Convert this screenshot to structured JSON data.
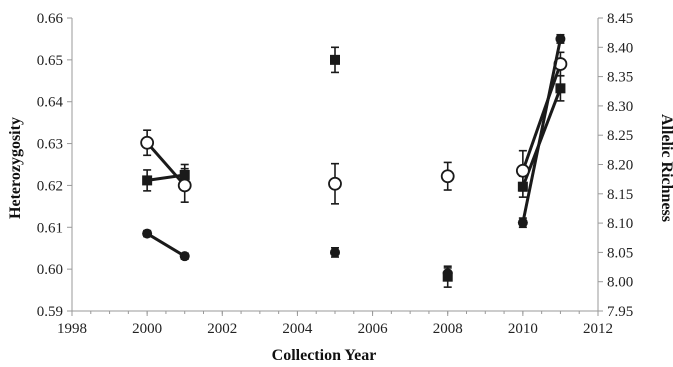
{
  "chart_data": {
    "type": "scatter",
    "xlabel": "Collection Year",
    "ylabel_left": "Heterozygosity",
    "ylabel_right": "Allelic Richness",
    "xlim": [
      1998,
      2012
    ],
    "x_ticks": [
      "1998",
      "2000",
      "2002",
      "2004",
      "2006",
      "2008",
      "2010",
      "2012"
    ],
    "ylim_left": [
      0.59,
      0.66
    ],
    "y_ticks_left": [
      "0.59",
      "0.60",
      "0.61",
      "0.62",
      "0.63",
      "0.64",
      "0.65",
      "0.66"
    ],
    "ylim_right": [
      7.95,
      8.45
    ],
    "y_ticks_right": [
      "7.95",
      "8.00",
      "8.05",
      "8.10",
      "8.15",
      "8.20",
      "8.25",
      "8.30",
      "8.35",
      "8.40",
      "8.45"
    ],
    "grid": false,
    "legend": "none",
    "series": [
      {
        "marker": "square-filled",
        "axis": "left",
        "color": "#1a1a1a",
        "points": [
          {
            "x": 2000,
            "y": 0.6212,
            "err": 0.0025
          },
          {
            "x": 2001,
            "y": 0.6225,
            "err": 0.0025
          },
          {
            "x": 2005,
            "y": 0.65,
            "err": 0.003
          },
          {
            "x": 2008,
            "y": 0.5982,
            "err": 0.0025
          },
          {
            "x": 2010,
            "y": 0.6197,
            "err": 0.0025
          },
          {
            "x": 2011,
            "y": 0.6432,
            "err": 0.003
          }
        ],
        "line_segments": [
          [
            0,
            1
          ],
          [
            4,
            5
          ]
        ]
      },
      {
        "marker": "circle-open",
        "axis": "left",
        "color": "#1a1a1a",
        "points": [
          {
            "x": 2000,
            "y": 0.6302,
            "err": 0.003
          },
          {
            "x": 2001,
            "y": 0.62,
            "err": 0.004
          },
          {
            "x": 2005,
            "y": 0.6204,
            "err": 0.0048
          },
          {
            "x": 2008,
            "y": 0.6222,
            "err": 0.0033
          },
          {
            "x": 2010,
            "y": 0.6235,
            "err": 0.0048
          },
          {
            "x": 2011,
            "y": 0.649,
            "err": 0.0028
          }
        ],
        "line_segments": [
          [
            0,
            1
          ],
          [
            4,
            5
          ]
        ]
      },
      {
        "marker": "circle-filled",
        "axis": "left",
        "color": "#1a1a1a",
        "points": [
          {
            "x": 2000,
            "y": 0.6085,
            "err": 0.0007
          },
          {
            "x": 2001,
            "y": 0.6031,
            "err": 0.0007
          },
          {
            "x": 2005,
            "y": 0.604,
            "err": 0.0011
          },
          {
            "x": 2008,
            "y": 0.599,
            "err": 0.0013
          },
          {
            "x": 2010,
            "y": 0.6111,
            "err": 0.0011
          },
          {
            "x": 2011,
            "y": 0.655,
            "err": 0.001
          }
        ],
        "line_segments": [
          [
            0,
            1
          ],
          [
            4,
            5
          ]
        ]
      }
    ]
  }
}
